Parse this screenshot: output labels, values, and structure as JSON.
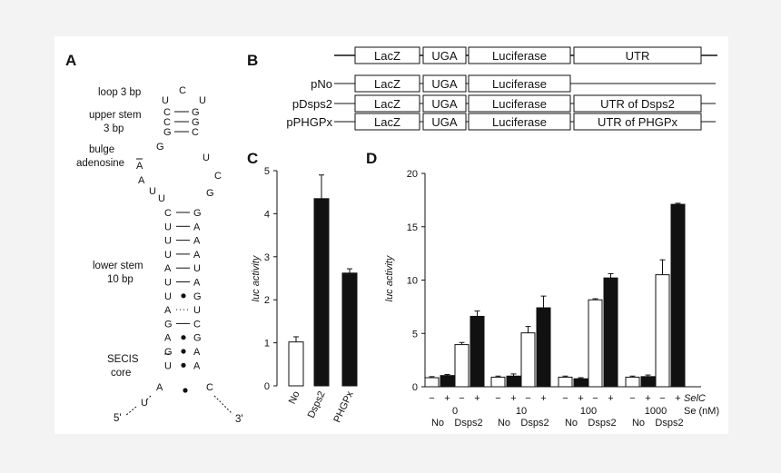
{
  "panels": {
    "A": {
      "letter": "A",
      "labels": {
        "loop": "loop 3 bp",
        "upper1": "upper stem",
        "upper2": "3 bp",
        "bulge1": "bulge",
        "bulge2": "adenosine",
        "lower1": "lower stem",
        "lower2": "10 bp",
        "secis1": "SECIS",
        "secis2": "core",
        "five": "5'",
        "three": "3'"
      },
      "nucleotides": {
        "loop_top": "C",
        "loop_left": "U",
        "loop_right": "U",
        "upper_left": [
          "C",
          "C",
          "G"
        ],
        "upper_right": [
          "G",
          "G",
          "C"
        ],
        "bulge_G": "G",
        "bulge_A": "A",
        "bulge_A2": "A",
        "bulge_U1": "U",
        "bulge_U2": "U",
        "right_U": "U",
        "right_C": "C",
        "right_G": "G",
        "lower_left": [
          "C",
          "U",
          "U",
          "U",
          "A",
          "U",
          "U",
          "A",
          "G",
          "A",
          "G",
          "U"
        ],
        "lower_right": [
          "G",
          "A",
          "A",
          "A",
          "U",
          "A",
          "G",
          "U",
          "C",
          "G",
          "A",
          "A"
        ],
        "bottom_A": "A",
        "bottom_C": "C",
        "tail_U": "U"
      }
    },
    "B": {
      "letter": "B",
      "rows": [
        {
          "name": "",
          "boxes": [
            "LacZ",
            "UGA",
            "Luciferase",
            "UTR"
          ]
        },
        {
          "name": "pNo",
          "boxes": [
            "LacZ",
            "UGA",
            "Luciferase"
          ]
        },
        {
          "name": "pDsps2",
          "boxes": [
            "LacZ",
            "UGA",
            "Luciferase",
            "UTR of Dsps2"
          ]
        },
        {
          "name": "pPHGPx",
          "boxes": [
            "LacZ",
            "UGA",
            "Luciferase",
            "UTR of PHGPx"
          ]
        }
      ]
    },
    "C": {
      "letter": "C"
    },
    "D": {
      "letter": "D"
    }
  },
  "chart_data": [
    {
      "type": "bar",
      "panel": "C",
      "ylabel": "luc activity",
      "ylim": [
        0,
        5
      ],
      "yticks": [
        "0",
        "1",
        "2",
        "3",
        "4",
        "5"
      ],
      "categories": [
        "No",
        "Dsps2",
        "PHGPx"
      ],
      "values": [
        1.02,
        4.35,
        2.62
      ],
      "errors": [
        0.12,
        0.55,
        0.1
      ],
      "fills": [
        "#ffffff",
        "#111111",
        "#111111"
      ]
    },
    {
      "type": "bar",
      "panel": "D",
      "ylabel": "luc activity",
      "ylim": [
        0,
        20
      ],
      "yticks": [
        "0",
        "5",
        "10",
        "15",
        "20"
      ],
      "selc_label": "SelC",
      "se_label": "Se (nM)",
      "group_labels": [
        "0",
        "10",
        "100",
        "1000"
      ],
      "construct_labels": [
        "No",
        "Dsps2"
      ],
      "signs": [
        "−",
        "+",
        "−",
        "+"
      ],
      "groups": [
        {
          "se": "0",
          "values": [
            0.85,
            1.05,
            3.95,
            6.6
          ],
          "errors": [
            0.1,
            0.1,
            0.2,
            0.5
          ]
        },
        {
          "se": "10",
          "values": [
            0.9,
            1.0,
            5.05,
            7.4
          ],
          "errors": [
            0.1,
            0.2,
            0.6,
            1.1
          ]
        },
        {
          "se": "100",
          "values": [
            0.9,
            0.75,
            8.15,
            10.2
          ],
          "errors": [
            0.1,
            0.1,
            0.1,
            0.4
          ]
        },
        {
          "se": "1000",
          "values": [
            0.9,
            0.95,
            10.5,
            17.1
          ],
          "errors": [
            0.1,
            0.15,
            1.4,
            0.1
          ]
        }
      ],
      "fills": [
        "#ffffff",
        "#111111",
        "#ffffff",
        "#111111"
      ]
    }
  ]
}
